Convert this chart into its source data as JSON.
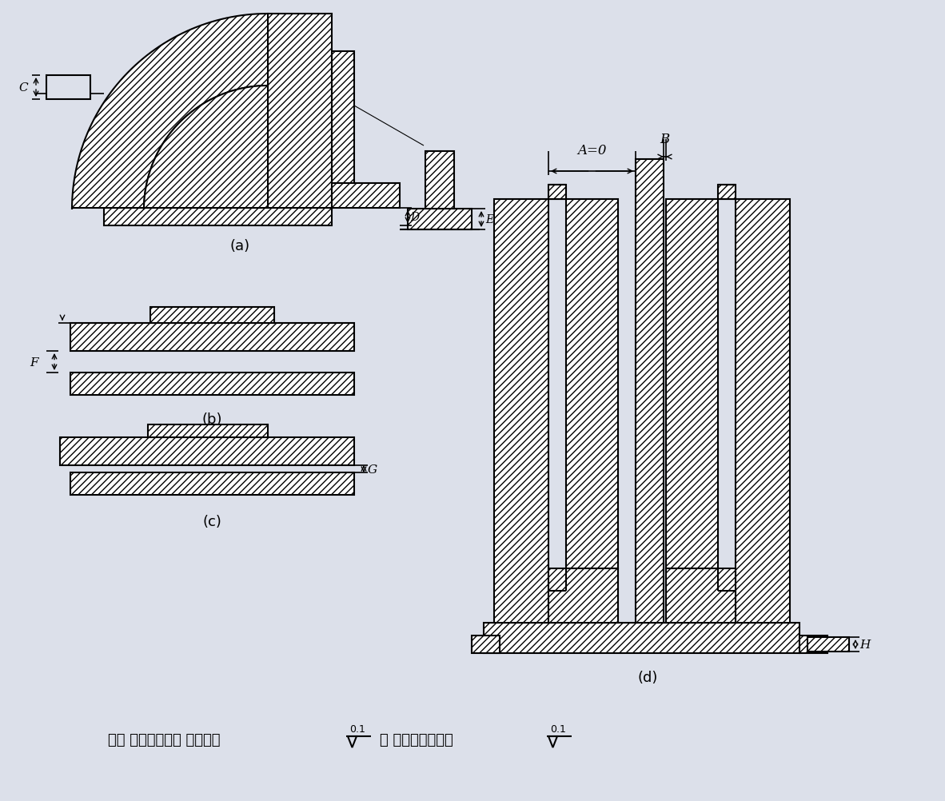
{
  "bg_color": "#dce0ea",
  "line_color": "#000000",
  "hatch_pattern": "////",
  "label_a": "(a)",
  "label_b": "(b)",
  "label_c": "(c)",
  "label_d": "(d)",
  "dim_A": "A=0",
  "dim_B": "B",
  "dim_C": "C",
  "dim_D": "D",
  "dim_E": "E",
  "dim_F": "F",
  "dim_G": "G",
  "dim_H": "H",
  "note_main": "注： 表面粗糙度： 止推轴承",
  "note_semi": "； 径向平面轴承。",
  "roughness_val": "0.1"
}
